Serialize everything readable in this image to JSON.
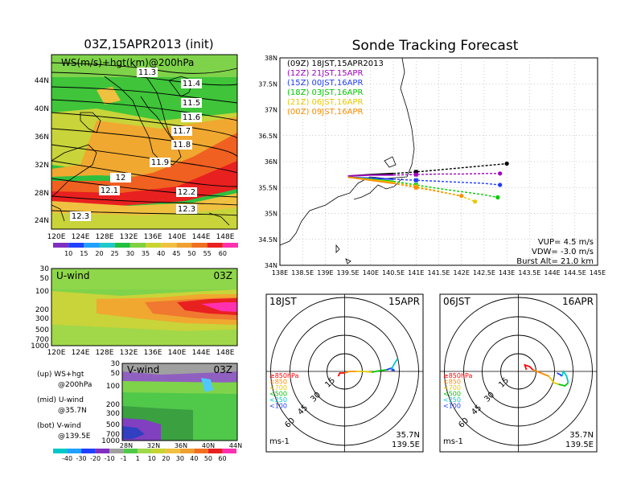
{
  "map_panel": {
    "title": "03Z,15APR2013 (init)",
    "label": "WS(m/s)+hgt(km)@200hPa",
    "lat_ticks": [
      "44N",
      "40N",
      "36N",
      "32N",
      "28N",
      "24N"
    ],
    "lon_ticks": [
      "120E",
      "124E",
      "128E",
      "132E",
      "136E",
      "140E",
      "144E",
      "148E"
    ],
    "contours": [
      "11.3",
      "11.4",
      "11.5",
      "11.6",
      "11.7",
      "11.8",
      "11.9",
      "12",
      "12.1",
      "12.2",
      "12.3",
      "12.3"
    ],
    "colorbar_ticks": [
      "10",
      "15",
      "20",
      "25",
      "30",
      "35",
      "40",
      "45",
      "50",
      "55",
      "60"
    ]
  },
  "uwind_panel": {
    "title": "U-wind",
    "time": "03Z",
    "p_ticks": [
      "30",
      "50",
      "100",
      "200",
      "300",
      "500",
      "700",
      "1000"
    ],
    "lon_ticks": [
      "120E",
      "124E",
      "128E",
      "132E",
      "136E",
      "140E",
      "144E",
      "148E"
    ]
  },
  "vwind_panel": {
    "title": "V-wind",
    "time": "03Z",
    "p_ticks": [
      "30",
      "50",
      "100",
      "200",
      "300",
      "500",
      "700",
      "1000"
    ],
    "lat_ticks": [
      "28N",
      "32N",
      "36N",
      "40N",
      "44N"
    ]
  },
  "legend_text": {
    "up1": "(up) WS+hgt",
    "up2": "@200hPa",
    "mid1": "(mid) U-wind",
    "mid2": "@35.7N",
    "bot1": "(bot) V-wind",
    "bot2": "@139.5E"
  },
  "bottom_colorbar_ticks": [
    "-40",
    "-30",
    "-20",
    "-10",
    "-1",
    "1",
    "10",
    "20",
    "30",
    "40",
    "50",
    "60"
  ],
  "tracking": {
    "title": "Sonde Tracking Forecast",
    "lat_ticks": [
      "38N",
      "37.5N",
      "37N",
      "36.5N",
      "36N",
      "35.5N",
      "35N",
      "34.5N",
      "34N"
    ],
    "lon_ticks": [
      "138E",
      "138.5E",
      "139E",
      "139.5E",
      "140E",
      "140.5E",
      "141E",
      "141.5E",
      "142E",
      "142.5E",
      "143E",
      "143.5E",
      "144E",
      "144.5E",
      "145E"
    ],
    "vup": "VUP= 4.5 m/s",
    "vdw": "VDW= -3.0 m/s",
    "burst": "Burst Alt= 21.0 km"
  },
  "chart_data": {
    "type": "line",
    "title": "Sonde Tracking Forecast",
    "x_range": [
      138,
      145
    ],
    "y_range": [
      34,
      38
    ],
    "series": [
      {
        "name": "(09Z) 18JST,15APR2013",
        "color": "#000000",
        "x": [
          139.5,
          140.0,
          140.5,
          141.0,
          141.5,
          142.0,
          142.5,
          143.0
        ],
        "y": [
          35.72,
          35.75,
          35.77,
          35.8,
          35.84,
          35.88,
          35.92,
          35.96
        ]
      },
      {
        "name": "(12Z) 21JST,15APR",
        "color": "#a000c0",
        "x": [
          139.5,
          140.0,
          140.5,
          141.0,
          141.5,
          142.0,
          142.5,
          142.85
        ],
        "y": [
          35.72,
          35.74,
          35.74,
          35.75,
          35.76,
          35.76,
          35.77,
          35.77
        ]
      },
      {
        "name": "(15Z) 00JST,16APR",
        "color": "#1e3cff",
        "x": [
          139.5,
          140.0,
          140.5,
          141.0,
          141.5,
          142.0,
          142.5,
          142.85
        ],
        "y": [
          35.7,
          35.68,
          35.66,
          35.64,
          35.62,
          35.6,
          35.58,
          35.55
        ]
      },
      {
        "name": "(18Z) 03JST,16APR",
        "color": "#00c800",
        "x": [
          139.5,
          140.0,
          140.5,
          141.0,
          141.5,
          142.0,
          142.5,
          142.8
        ],
        "y": [
          35.7,
          35.66,
          35.62,
          35.55,
          35.48,
          35.42,
          35.36,
          35.31
        ]
      },
      {
        "name": "(21Z) 06JST,16APR",
        "color": "#e6c800",
        "x": [
          139.5,
          140.0,
          140.5,
          141.0,
          141.5,
          142.0,
          142.3
        ],
        "y": [
          35.7,
          35.65,
          35.6,
          35.52,
          35.43,
          35.33,
          35.23
        ]
      },
      {
        "name": "(00Z) 09JST,16APR",
        "color": "#ff8c00",
        "x": [
          139.5,
          140.0,
          140.5,
          141.0,
          141.5,
          142.0
        ],
        "y": [
          35.7,
          35.64,
          35.58,
          35.5,
          35.42,
          35.34
        ]
      }
    ]
  },
  "hodo_left": {
    "time": "18JST",
    "date": "15APR",
    "lat": "35.7N",
    "lon": "139.5E",
    "unit": "ms-1",
    "rings": [
      "15",
      "30",
      "45",
      "60"
    ]
  },
  "hodo_right": {
    "time": "06JST",
    "date": "16APR",
    "lat": "35.7N",
    "lon": "139.5E",
    "unit": "ms-1",
    "rings": [
      "15",
      "30",
      "45",
      "60"
    ]
  },
  "hodo_legend": [
    {
      "label": "≥850hPa",
      "color": "#ff0000"
    },
    {
      "label": "<850",
      "color": "#ff8c00"
    },
    {
      "label": "<700",
      "color": "#e6c800"
    },
    {
      "label": "<500",
      "color": "#00c800"
    },
    {
      "label": "<250",
      "color": "#00c8c8"
    },
    {
      "label": "<100",
      "color": "#1e3cff"
    }
  ]
}
